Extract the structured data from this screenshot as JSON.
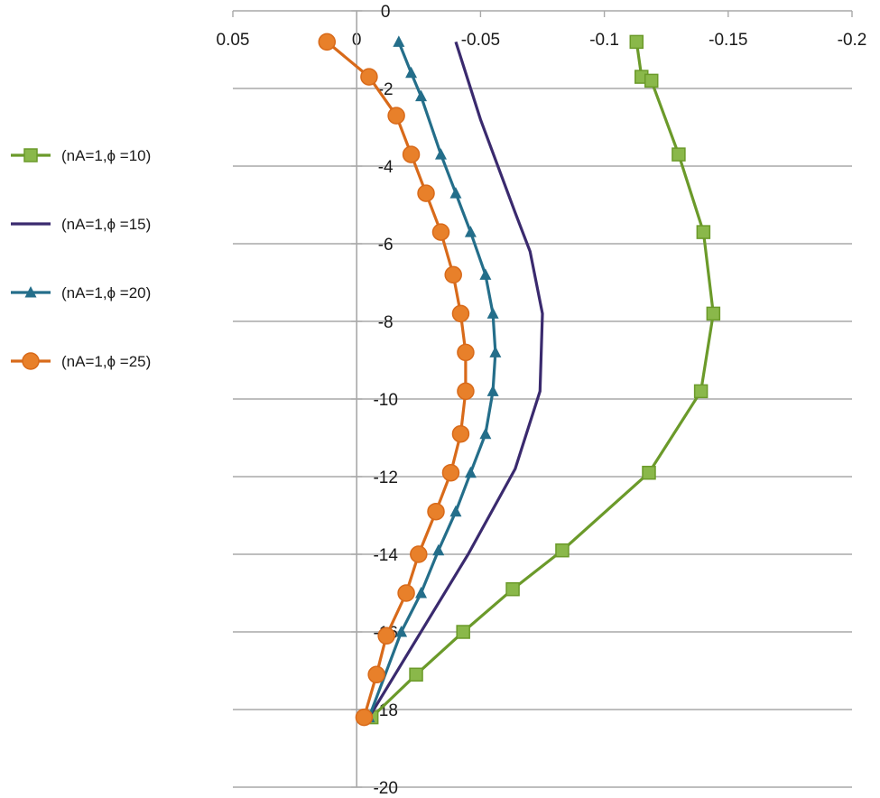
{
  "chart_data": {
    "type": "line",
    "title": "",
    "xlabel": "",
    "ylabel": "",
    "xlim": [
      0.05,
      -0.2
    ],
    "ylim": [
      0,
      -20
    ],
    "grid": "horizontal",
    "legend_position": "left",
    "x_ticks": [
      "0.05",
      "0",
      "-0.05",
      "-0.1",
      "-0.15",
      "-0.2"
    ],
    "x_tick_values": [
      0.05,
      0,
      -0.05,
      -0.1,
      -0.15,
      -0.2
    ],
    "y_ticks": [
      "0",
      "-2",
      "-4",
      "-6",
      "-8",
      "-10",
      "-12",
      "-14",
      "-16",
      "-18",
      "-20"
    ],
    "y_tick_values": [
      0,
      -2,
      -4,
      -6,
      -8,
      -10,
      -12,
      -14,
      -16,
      -18,
      -20
    ],
    "series": [
      {
        "name": "(nA=1,ϕ =10)",
        "color": "#6b9a2a",
        "marker": "square",
        "x": [
          -0.113,
          -0.115,
          -0.119,
          -0.13,
          -0.14,
          -0.144,
          -0.139,
          -0.118,
          -0.083,
          -0.063,
          -0.043,
          -0.024,
          -0.006
        ],
        "y": [
          -0.8,
          -1.7,
          -1.8,
          -3.7,
          -5.7,
          -7.8,
          -9.8,
          -11.9,
          -13.9,
          -14.9,
          -16.0,
          -17.1,
          -18.2
        ]
      },
      {
        "name": "(nA=1,ϕ =15)",
        "color": "#3a2a6e",
        "marker": "none",
        "x": [
          -0.04,
          -0.05,
          -0.064,
          -0.07,
          -0.075,
          -0.074,
          -0.064,
          -0.045,
          -0.005
        ],
        "y": [
          -0.8,
          -2.8,
          -5.2,
          -6.2,
          -7.8,
          -9.8,
          -11.8,
          -14.0,
          -18.2
        ]
      },
      {
        "name": "(nA=1,ϕ =20)",
        "color": "#246e8a",
        "marker": "triangle",
        "x": [
          -0.017,
          -0.022,
          -0.026,
          -0.034,
          -0.04,
          -0.046,
          -0.052,
          -0.055,
          -0.056,
          -0.055,
          -0.052,
          -0.046,
          -0.04,
          -0.033,
          -0.026,
          -0.018,
          -0.005
        ],
        "y": [
          -0.8,
          -1.6,
          -2.2,
          -3.7,
          -4.7,
          -5.7,
          -6.8,
          -7.8,
          -8.8,
          -9.8,
          -10.9,
          -11.9,
          -12.9,
          -13.9,
          -15.0,
          -16.0,
          -18.2
        ]
      },
      {
        "name": "(nA=1,ϕ =25)",
        "color": "#d86a1a",
        "marker": "circle",
        "x": [
          0.012,
          -0.005,
          -0.016,
          -0.022,
          -0.028,
          -0.034,
          -0.039,
          -0.042,
          -0.044,
          -0.044,
          -0.042,
          -0.038,
          -0.032,
          -0.025,
          -0.02,
          -0.012,
          -0.008,
          -0.003
        ],
        "y": [
          -0.8,
          -1.7,
          -2.7,
          -3.7,
          -4.7,
          -5.7,
          -6.8,
          -7.8,
          -8.8,
          -9.8,
          -10.9,
          -11.9,
          -12.9,
          -14.0,
          -15.0,
          -16.1,
          -17.1,
          -18.2
        ]
      }
    ]
  }
}
